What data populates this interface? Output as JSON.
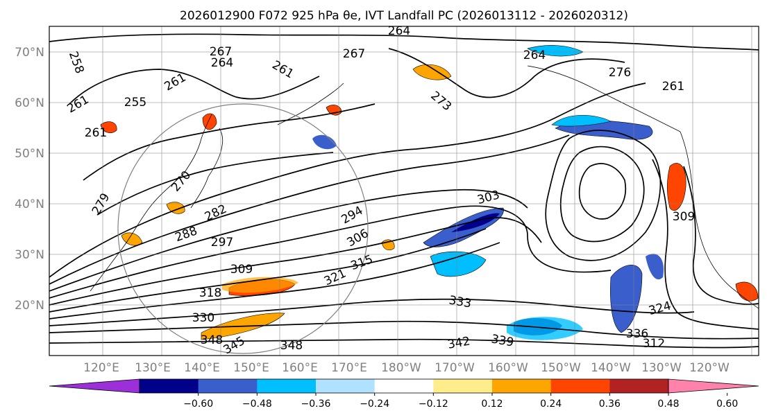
{
  "title": "2026012900 F072 925 hPa θe, IVT Landfall PC (2026013112 - 2026020312)",
  "map": {
    "lat_labels": [
      "70°N",
      "60°N",
      "50°N",
      "40°N",
      "30°N",
      "20°N"
    ],
    "lon_labels": [
      "120°E",
      "130°E",
      "140°E",
      "150°E",
      "160°E",
      "170°E",
      "180°W",
      "170°W",
      "160°W",
      "150°W",
      "140°W",
      "130°W",
      "120°W"
    ],
    "contour_labels": [
      "264",
      "267",
      "264",
      "258",
      "261",
      "261",
      "255",
      "261",
      "261",
      "267",
      "273",
      "276",
      "261",
      "264",
      "270",
      "282",
      "279",
      "288",
      "297",
      "294",
      "303",
      "306",
      "315",
      "309",
      "318",
      "321",
      "330",
      "333",
      "342",
      "339",
      "345",
      "348",
      "348",
      "336",
      "324",
      "309",
      "312"
    ],
    "colors": {
      "coast": "#000000",
      "grid": "#808080"
    }
  },
  "colorbar": {
    "ticks": [
      "−0.60",
      "−0.48",
      "−0.36",
      "−0.24",
      "−0.12",
      "0.12",
      "0.24",
      "0.36",
      "0.48",
      "0.60"
    ],
    "colors": [
      "#9b30d9",
      "#00008b",
      "#3a5fcd",
      "#00bfff",
      "#b0e2ff",
      "#ffffff",
      "#ffec8b",
      "#ffa500",
      "#ff4500",
      "#b22222",
      "#ff82ab"
    ]
  }
}
